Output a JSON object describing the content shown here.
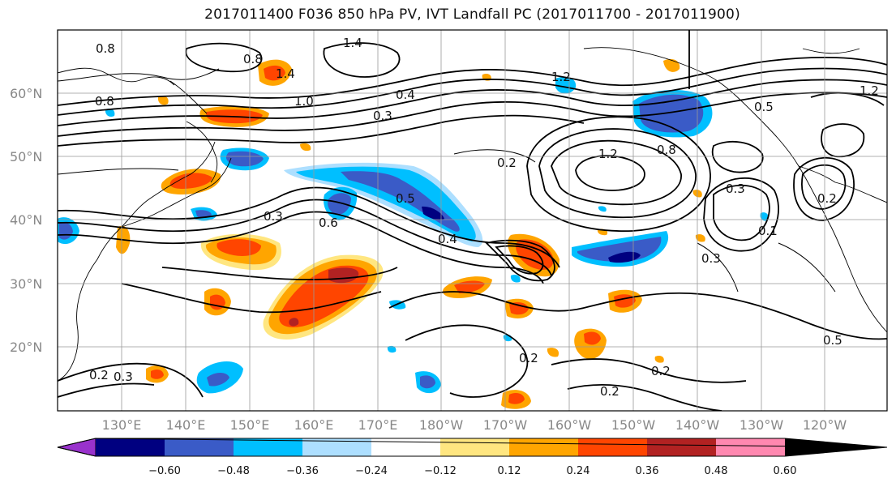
{
  "title": "2017011400 F036 850 hPa PV, IVT Landfall PC (2017011700 - 2017011900)",
  "lat_labels": [
    "60°N",
    "50°N",
    "40°N",
    "30°N",
    "20°N"
  ],
  "lon_labels": [
    "130°E",
    "140°E",
    "150°E",
    "160°E",
    "170°E",
    "180°W",
    "170°W",
    "160°W",
    "150°W",
    "140°W",
    "130°W",
    "120°W"
  ],
  "contour_labels": [
    "0.8",
    "0.8",
    "1.4",
    "1.4",
    "0.8",
    "1.0",
    "0.3",
    "0.4",
    "0.5",
    "1.2",
    "0.2",
    "1.2",
    "0.8",
    "0.5",
    "0.6",
    "0.3",
    "0.3",
    "0.4",
    "0.2",
    "0.2",
    "0.2",
    "0.3",
    "0.5",
    "0.2",
    "0.3",
    "0.2",
    "1.2",
    "0.1"
  ],
  "colorbar": {
    "ticks": [
      "−0.60",
      "−0.48",
      "−0.36",
      "−0.24",
      "−0.12",
      "0.12",
      "0.24",
      "0.36",
      "0.48",
      "0.60"
    ],
    "colors": [
      "#9932CC",
      "#000080",
      "#3A5BC7",
      "#00BFFF",
      "#ADDFFF",
      "#FFFFFF",
      "#FFE680",
      "#FFA500",
      "#FF4500",
      "#B22222",
      "#FF88B0"
    ]
  }
}
